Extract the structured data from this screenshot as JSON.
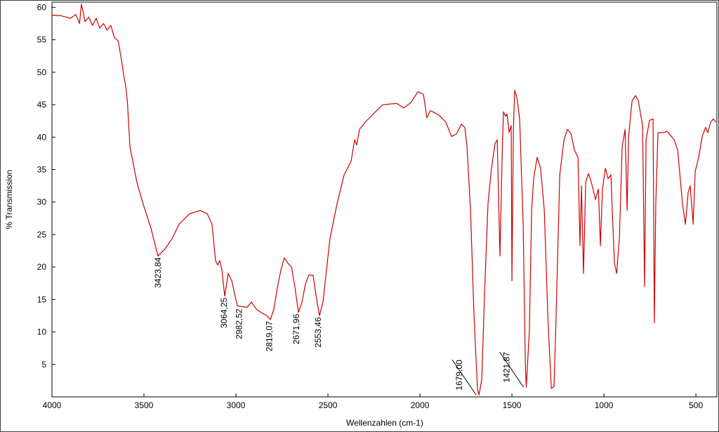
{
  "chart_data": {
    "type": "line",
    "xlabel": "Wellenzahlen (cm-1)",
    "ylabel": "% Transmission",
    "color": "#cc0000",
    "xlim": [
      4000,
      386
    ],
    "ylim": [
      0,
      60.8
    ],
    "xticks": [
      4000,
      3500,
      3000,
      2500,
      2000,
      1500,
      1000,
      500
    ],
    "yticks": [
      5,
      10,
      15,
      20,
      25,
      30,
      35,
      40,
      45,
      50,
      55,
      60
    ],
    "x": [
      4000,
      3950,
      3900,
      3870,
      3850,
      3840,
      3820,
      3800,
      3780,
      3760,
      3740,
      3720,
      3700,
      3680,
      3660,
      3640,
      3620,
      3610,
      3600,
      3590,
      3576,
      3538,
      3500,
      3462,
      3424,
      3385,
      3347,
      3309,
      3252,
      3195,
      3156,
      3130,
      3111,
      3099,
      3088,
      3076,
      3061,
      3042,
      3023,
      2992,
      2966,
      2939,
      2916,
      2889,
      2863,
      2832,
      2813,
      2794,
      2775,
      2756,
      2737,
      2718,
      2698,
      2679,
      2660,
      2641,
      2622,
      2603,
      2580,
      2565,
      2546,
      2527,
      2489,
      2450,
      2412,
      2374,
      2355,
      2344,
      2328,
      2298,
      2260,
      2202,
      2126,
      2088,
      2050,
      2011,
      1981,
      1962,
      1943,
      1897,
      1859,
      1828,
      1801,
      1775,
      1756,
      1744,
      1725,
      1706,
      1687,
      1679,
      1664,
      1649,
      1630,
      1611,
      1592,
      1580,
      1572,
      1565,
      1553,
      1546,
      1534,
      1527,
      1515,
      1504,
      1500,
      1492,
      1485,
      1473,
      1458,
      1439,
      1427,
      1422,
      1405,
      1393,
      1382,
      1363,
      1344,
      1324,
      1305,
      1286,
      1271,
      1260,
      1240,
      1217,
      1198,
      1179,
      1160,
      1141,
      1130,
      1122,
      1111,
      1099,
      1084,
      1069,
      1046,
      1030,
      1019,
      1008,
      992,
      977,
      962,
      943,
      931,
      916,
      901,
      885,
      874,
      866,
      847,
      828,
      813,
      790,
      779,
      771,
      752,
      733,
      726,
      718,
      706,
      676,
      657,
      618,
      599,
      573,
      557,
      542,
      531,
      515,
      504,
      485,
      466,
      447,
      435,
      420,
      405,
      390
    ],
    "values": [
      58.8,
      58.7,
      58.3,
      58.9,
      57.5,
      60.5,
      57.8,
      58.5,
      57.2,
      58.3,
      56.8,
      57.5,
      56.5,
      57.2,
      55.3,
      54.8,
      51.5,
      49.5,
      48,
      45.5,
      38.5,
      33,
      29.3,
      26,
      21.7,
      22.8,
      24.4,
      26.6,
      28.2,
      28.7,
      28.2,
      26.6,
      21,
      20.3,
      21,
      19.5,
      15.5,
      19,
      17.9,
      14,
      13.9,
      13.8,
      14.6,
      13.5,
      13,
      12.5,
      11.9,
      13.5,
      16.8,
      19.5,
      21.4,
      20.6,
      20,
      16.8,
      13,
      14.6,
      17.4,
      18.8,
      18.7,
      15.7,
      12.5,
      14.6,
      24.4,
      29.8,
      34.2,
      36.3,
      39.6,
      38.8,
      41.2,
      42.3,
      43.4,
      45,
      45.2,
      44.5,
      45.3,
      47,
      46.6,
      43,
      44.1,
      43.4,
      42.3,
      40.1,
      40.5,
      42,
      41.5,
      38.5,
      28.7,
      12.5,
      1.1,
      0.3,
      2.7,
      15.7,
      29.8,
      35.2,
      39,
      39.6,
      30,
      21.7,
      37.4,
      43.9,
      43.2,
      43.6,
      40.7,
      41.8,
      17.9,
      41.3,
      47.2,
      46.1,
      42.8,
      26.6,
      5,
      1.5,
      10.3,
      28.7,
      33.6,
      36.9,
      35.2,
      28.7,
      12.5,
      1.3,
      1.6,
      12.5,
      34.2,
      39.6,
      41.2,
      40.5,
      38,
      36.9,
      23.3,
      32.5,
      19,
      33.1,
      34.4,
      33.1,
      30.4,
      32,
      23.3,
      32,
      35.2,
      33.6,
      34.2,
      20.6,
      19,
      24.4,
      38.5,
      41.2,
      28.7,
      40,
      45.6,
      46.4,
      45.6,
      41.8,
      17,
      39.6,
      42.6,
      42.8,
      11.4,
      30,
      40.7,
      40.7,
      40.9,
      39.6,
      38,
      29.8,
      26.6,
      31.5,
      32.5,
      26.6,
      34.7,
      36.9,
      40.1,
      41.5,
      40.7,
      42.3,
      42.8,
      42.3
    ],
    "annotations": [
      {
        "x": 3423.84,
        "y": 21.7,
        "label": "3423,84"
      },
      {
        "x": 3064.25,
        "y": 15.5,
        "label": "3064,25"
      },
      {
        "x": 2982.52,
        "y": 13.8,
        "label": "2982,52"
      },
      {
        "x": 2819.07,
        "y": 11.9,
        "label": "2819,07"
      },
      {
        "x": 2671.96,
        "y": 13,
        "label": "2671,96"
      },
      {
        "x": 2553.46,
        "y": 12.5,
        "label": "2553,46"
      },
      {
        "x": 1679.0,
        "y": 0.3,
        "label": "1679,00"
      },
      {
        "x": 1421.87,
        "y": 1.5,
        "label": "1421,87"
      }
    ]
  }
}
